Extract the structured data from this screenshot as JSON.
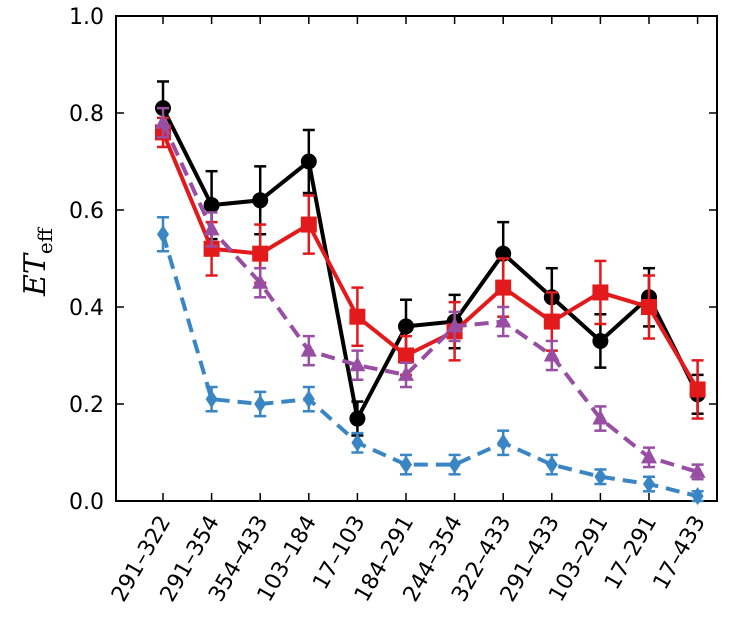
{
  "chart_data": {
    "type": "line",
    "title": "",
    "ylabel": "ET",
    "ylabel_subscript": "eff",
    "xlabel": "",
    "ylim": [
      0.0,
      1.0
    ],
    "yticks": [
      "0.0",
      "0.2",
      "0.4",
      "0.6",
      "0.8",
      "1.0"
    ],
    "grid": false,
    "categories": [
      "291–322",
      "291–354",
      "354–433",
      "103–184",
      "17–103",
      "184–291",
      "244–354",
      "322–433",
      "291–433",
      "103–291",
      "17–291",
      "17–433"
    ],
    "series": [
      {
        "color": "#000000",
        "line_style": "solid",
        "marker": "circle",
        "values": [
          0.81,
          0.61,
          0.62,
          0.7,
          0.17,
          0.36,
          0.37,
          0.51,
          0.42,
          0.33,
          0.42,
          0.22
        ],
        "errors": [
          0.055,
          0.07,
          0.07,
          0.065,
          0.035,
          0.055,
          0.055,
          0.065,
          0.06,
          0.055,
          0.06,
          0.04
        ]
      },
      {
        "color": "#e31a1c",
        "line_style": "solid",
        "marker": "square",
        "values": [
          0.76,
          0.52,
          0.51,
          0.57,
          0.38,
          0.3,
          0.35,
          0.44,
          0.37,
          0.43,
          0.4,
          0.23
        ],
        "errors": [
          0.03,
          0.055,
          0.06,
          0.06,
          0.06,
          0.04,
          0.06,
          0.06,
          0.06,
          0.065,
          0.065,
          0.06
        ]
      },
      {
        "color": "#984ea3",
        "line_style": "dashed",
        "marker": "triangle",
        "values": [
          0.78,
          0.56,
          0.45,
          0.31,
          0.28,
          0.26,
          0.36,
          0.37,
          0.3,
          0.17,
          0.09,
          0.06
        ],
        "errors": [
          0.03,
          0.035,
          0.03,
          0.03,
          0.03,
          0.025,
          0.03,
          0.03,
          0.03,
          0.025,
          0.02,
          0.015
        ]
      },
      {
        "color": "#3a85c4",
        "line_style": "dashed",
        "marker": "diamond",
        "values": [
          0.55,
          0.21,
          0.2,
          0.21,
          0.12,
          0.075,
          0.075,
          0.12,
          0.075,
          0.05,
          0.035,
          0.01
        ],
        "errors": [
          0.035,
          0.025,
          0.025,
          0.025,
          0.02,
          0.02,
          0.02,
          0.025,
          0.02,
          0.015,
          0.015,
          0.01
        ]
      }
    ]
  }
}
